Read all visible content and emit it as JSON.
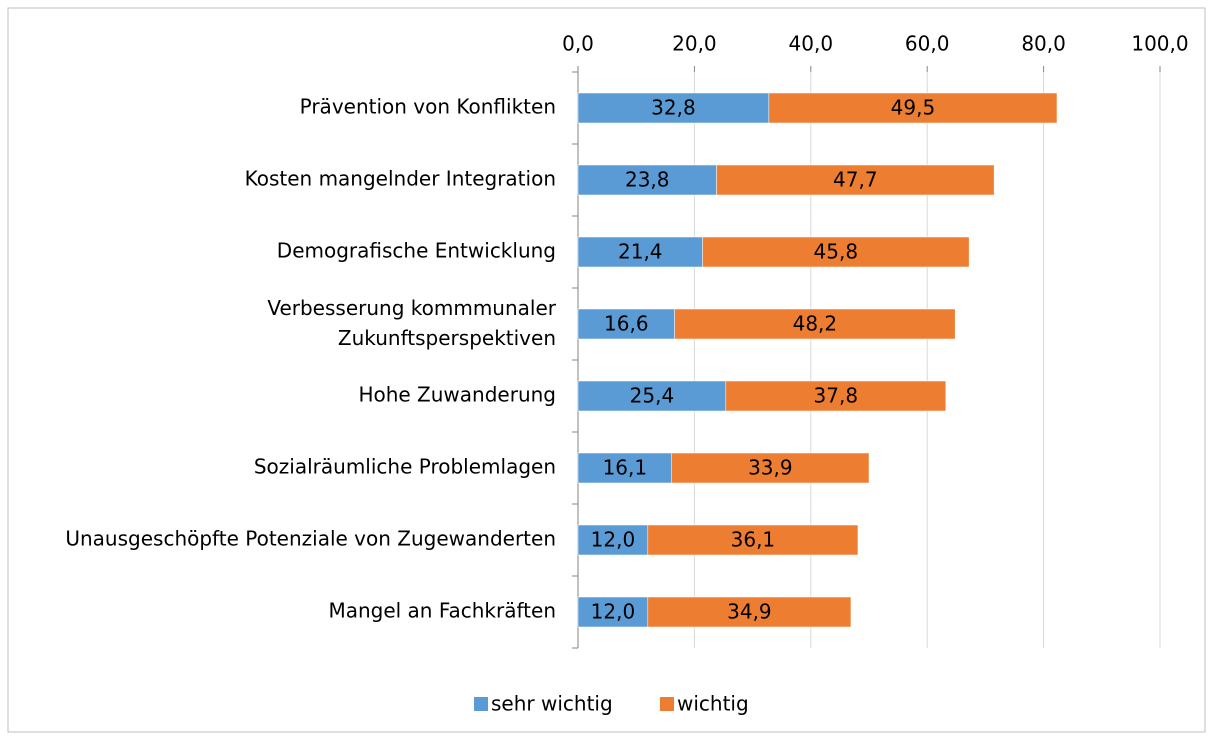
{
  "chart_data": {
    "type": "stacked-bar-horizontal",
    "categories": [
      "Prävention von Konflikten",
      "Kosten mangelnder Integration",
      "Demografische Entwicklung",
      "Verbesserung kommmunaler\nZukunftsperspektiven",
      "Hohe Zuwanderung",
      "Sozialräumliche Problemlagen",
      "Unausgeschöpfte Potenziale von Zugewanderten",
      "Mangel an Fachkräften"
    ],
    "series": [
      {
        "name": "sehr wichtig",
        "color": "#5b9bd5",
        "values": [
          32.8,
          23.8,
          21.4,
          16.6,
          25.4,
          16.1,
          12.0,
          12.0
        ],
        "value_labels": [
          "32,8",
          "23,8",
          "21,4",
          "16,6",
          "25,4",
          "16,1",
          "12,0",
          "12,0"
        ]
      },
      {
        "name": "wichtig",
        "color": "#ed7d31",
        "values": [
          49.5,
          47.7,
          45.8,
          48.2,
          37.8,
          33.9,
          36.1,
          34.9
        ],
        "value_labels": [
          "49,5",
          "47,7",
          "45,8",
          "48,2",
          "37,8",
          "33,9",
          "36,1",
          "34,9"
        ]
      }
    ],
    "xlim": [
      0,
      100
    ],
    "xticks": [
      {
        "value": 0,
        "label": "0,0"
      },
      {
        "value": 20,
        "label": "20,0"
      },
      {
        "value": 40,
        "label": "40,0"
      },
      {
        "value": 60,
        "label": "60,0"
      },
      {
        "value": 80,
        "label": "80,0"
      },
      {
        "value": 100,
        "label": "100,0"
      }
    ],
    "grid": true,
    "legend": "bottom"
  }
}
